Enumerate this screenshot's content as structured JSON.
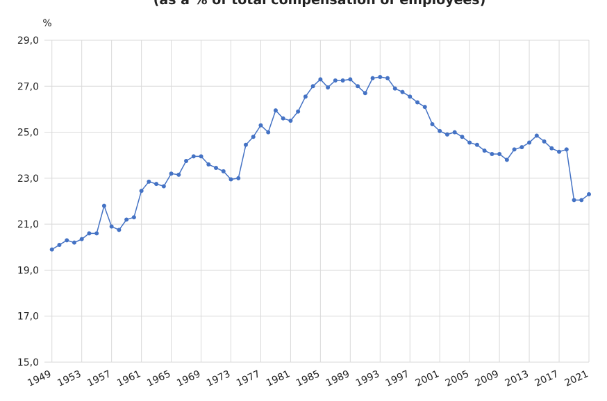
{
  "chart_data": {
    "type": "line",
    "title": "(as a % of total compensation of employees)",
    "y_unit": "%",
    "x": [
      1949,
      1950,
      1951,
      1952,
      1953,
      1954,
      1955,
      1956,
      1957,
      1958,
      1959,
      1960,
      1961,
      1962,
      1963,
      1964,
      1965,
      1966,
      1967,
      1968,
      1969,
      1970,
      1971,
      1972,
      1973,
      1974,
      1975,
      1976,
      1977,
      1978,
      1979,
      1980,
      1981,
      1982,
      1983,
      1984,
      1985,
      1986,
      1987,
      1988,
      1989,
      1990,
      1991,
      1992,
      1993,
      1994,
      1995,
      1996,
      1997,
      1998,
      1999,
      2000,
      2001,
      2002,
      2003,
      2004,
      2005,
      2006,
      2007,
      2008,
      2009,
      2010,
      2011,
      2012,
      2013,
      2014,
      2015,
      2016,
      2017,
      2018,
      2019,
      2020,
      2021
    ],
    "series": [
      {
        "color": "#4472c4",
        "values": [
          19.9,
          20.1,
          20.3,
          20.2,
          20.35,
          20.6,
          20.6,
          21.8,
          20.9,
          20.75,
          21.2,
          21.3,
          22.45,
          22.85,
          22.75,
          22.65,
          23.2,
          23.15,
          23.75,
          23.95,
          23.95,
          23.6,
          23.45,
          23.3,
          22.95,
          23.0,
          24.45,
          24.8,
          25.3,
          25.0,
          25.95,
          25.6,
          25.5,
          25.9,
          26.55,
          27.0,
          27.3,
          26.95,
          27.25,
          27.25,
          27.3,
          27.0,
          26.7,
          27.35,
          27.4,
          27.35,
          26.9,
          26.75,
          26.55,
          26.3,
          26.1,
          25.35,
          25.05,
          24.9,
          25.0,
          24.8,
          24.55,
          24.45,
          24.2,
          24.05,
          24.05,
          23.8,
          24.25,
          24.35,
          24.55,
          24.85,
          24.6,
          24.3,
          24.15,
          24.25,
          22.05,
          22.05,
          22.3
        ]
      }
    ],
    "xlim": [
      1948,
      2021
    ],
    "xticks": [
      1949,
      1953,
      1957,
      1961,
      1965,
      1969,
      1973,
      1977,
      1981,
      1985,
      1989,
      1993,
      1997,
      2001,
      2005,
      2009,
      2013,
      2017,
      2021
    ],
    "ylim": [
      15,
      29
    ],
    "yticks": [
      {
        "value": 15,
        "label": "15,0"
      },
      {
        "value": 17,
        "label": "17,0"
      },
      {
        "value": 19,
        "label": "19,0"
      },
      {
        "value": 21,
        "label": "21,0"
      },
      {
        "value": 23,
        "label": "23,0"
      },
      {
        "value": 25,
        "label": "25,0"
      },
      {
        "value": 27,
        "label": "27,0"
      },
      {
        "value": 29,
        "label": "29,0"
      }
    ],
    "grid": true
  }
}
